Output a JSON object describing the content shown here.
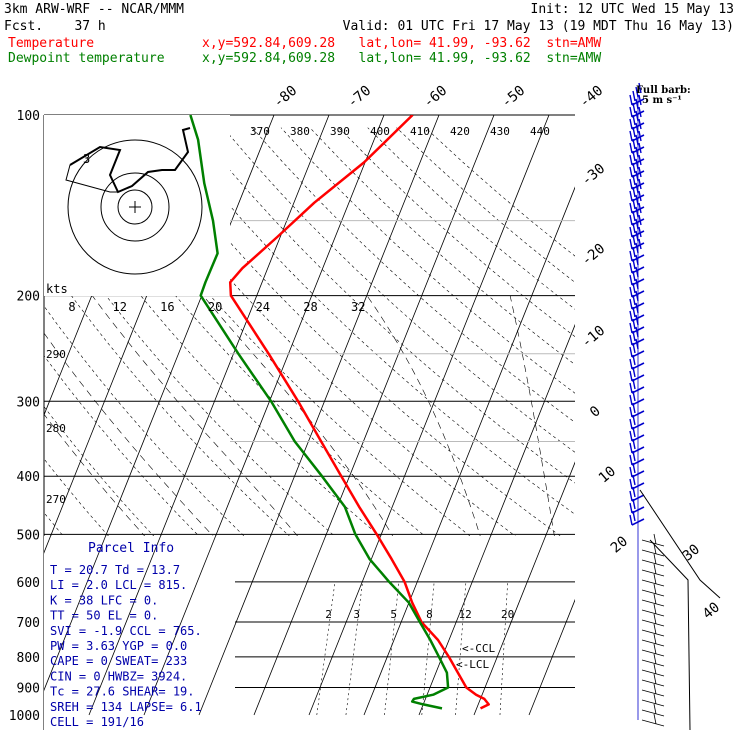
{
  "header": {
    "model": "3km ARW-WRF -- NCAR/MMM",
    "init": "Init: 12 UTC Wed 15 May 13",
    "fcst": "Fcst.    37 h",
    "valid": "Valid: 01 UTC Fri 17 May 13 (19 MDT Thu 16 May 13)",
    "temp_label": "Temperature",
    "dew_label": "Dewpoint temperature",
    "temp_loc": "x,y=592.84,609.28   lat,lon= 41.99, -93.62  stn=AMW",
    "dew_loc": "x,y=592.84,609.28   lat,lon= 41.99, -93.62  stn=AMW"
  },
  "colors": {
    "temperature": "#ff0000",
    "dewpoint": "#008000",
    "wind": "#0000cc",
    "parcel": "#0000aa"
  },
  "chart_data": {
    "type": "line",
    "diagram": "skew-T log-P",
    "y_axis": {
      "scale": "log",
      "ylim": [
        1000,
        100
      ],
      "ticks": [
        100,
        200,
        300,
        400,
        500,
        600,
        700,
        800,
        900,
        1000
      ]
    },
    "isotherm_labels": [
      "-80",
      "-70",
      "-60",
      "-50",
      "-40",
      "-30",
      "-20",
      "-10",
      "0",
      "10",
      "20",
      "30",
      "40"
    ],
    "mixing_ratio_labels": [
      "2",
      "3",
      "5",
      "8",
      "12",
      "20"
    ],
    "theta_labels": [
      "370",
      "380",
      "390",
      "400",
      "410",
      "420",
      "430",
      "440"
    ],
    "theta_low_labels": [
      "290",
      "280",
      "270"
    ],
    "series": [
      {
        "name": "Temperature",
        "color": "#ff0000",
        "points": [
          [
            975,
            20.7
          ],
          [
            960,
            21.9
          ],
          [
            940,
            20.7
          ],
          [
            925,
            18.9
          ],
          [
            900,
            16.6
          ],
          [
            850,
            14.0
          ],
          [
            800,
            11.2
          ],
          [
            750,
            8.0
          ],
          [
            700,
            3.7
          ],
          [
            650,
            0.6
          ],
          [
            600,
            -2.3
          ],
          [
            550,
            -6.3
          ],
          [
            500,
            -10.8
          ],
          [
            450,
            -16.0
          ],
          [
            400,
            -21.5
          ],
          [
            350,
            -27.7
          ],
          [
            300,
            -34.8
          ],
          [
            250,
            -43.6
          ],
          [
            200,
            -54.7
          ],
          [
            190,
            -55.8
          ],
          [
            180,
            -54.6
          ],
          [
            160,
            -50.6
          ],
          [
            140,
            -46.3
          ],
          [
            120,
            -40.2
          ],
          [
            100,
            -34.8
          ]
        ]
      },
      {
        "name": "Dewpoint temperature",
        "color": "#008000",
        "points": [
          [
            975,
            13.7
          ],
          [
            960,
            10.0
          ],
          [
            950,
            7.8
          ],
          [
            940,
            7.9
          ],
          [
            925,
            11.1
          ],
          [
            900,
            13.3
          ],
          [
            850,
            12.0
          ],
          [
            800,
            9.4
          ],
          [
            750,
            6.6
          ],
          [
            700,
            3.4
          ],
          [
            650,
            0.0
          ],
          [
            600,
            -5.1
          ],
          [
            550,
            -10.3
          ],
          [
            500,
            -14.7
          ],
          [
            450,
            -18.6
          ],
          [
            400,
            -25.0
          ],
          [
            350,
            -32.5
          ],
          [
            300,
            -39.7
          ],
          [
            250,
            -49.1
          ],
          [
            200,
            -60.2
          ],
          [
            190,
            -60.3
          ],
          [
            170,
            -60.2
          ],
          [
            150,
            -63.4
          ],
          [
            130,
            -67.7
          ],
          [
            110,
            -72.0
          ],
          [
            100,
            -75.2
          ]
        ]
      }
    ]
  },
  "hodograph": {
    "scale_label": "kts",
    "speed_labels": [
      "8",
      "12",
      "16",
      "20",
      "24",
      "28",
      "32"
    ],
    "marker_label": "3"
  },
  "wind_legend": {
    "line1": "Full barb:",
    "line2": "5 m s⁻¹"
  },
  "annotations": {
    "ccl": "<-CCL",
    "lcl": "<-LCL"
  },
  "barb_axis_labels": [
    "30",
    "40"
  ],
  "parcel_info": {
    "title": "Parcel Info",
    "rows": [
      "T  =   20.7 Td =  13.7",
      "LI =    2.0 LCL =  815.",
      "K  =     38 LFC =    0.",
      "TT =     50 EL  =    0.",
      "SVI =  -1.9 CCL =  765.",
      "PW =   3.63 YGP =   0.0",
      "CAPE =    0 SWEAT=  233",
      "CIN =     0 HWBZ= 3924.",
      "Tc =   27.6 SHEAR=  19.",
      "SREH =  134 LAPSE=  6.1",
      "CELL = 191/16"
    ]
  }
}
